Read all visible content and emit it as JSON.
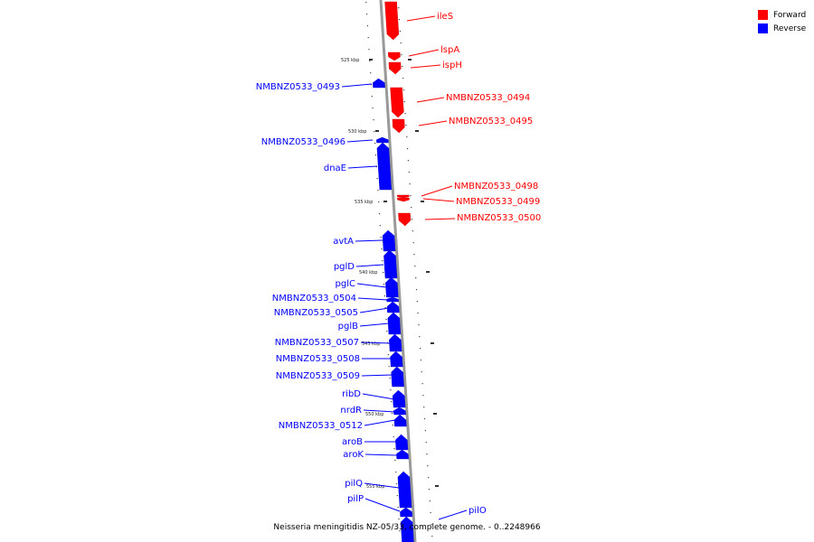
{
  "legend": {
    "forward_label": "Forward",
    "reverse_label": "Reverse",
    "forward_color": "#ff0000",
    "reverse_color": "#0000ff"
  },
  "caption": "Neisseria meningitidis NZ-05/33, complete genome. - 0..2248966",
  "backbone_color": "#999999",
  "ticks": [
    {
      "kbp": 525,
      "label": "525 kbp"
    },
    {
      "kbp": 530,
      "label": "530 kbp"
    },
    {
      "kbp": 535,
      "label": "535 kbp"
    },
    {
      "kbp": 540,
      "label": "540 kbp"
    },
    {
      "kbp": 545,
      "label": "545 kbp"
    },
    {
      "kbp": 550,
      "label": "550 kbp"
    },
    {
      "kbp": 555,
      "label": "555 kbp"
    }
  ],
  "genes": [
    {
      "name": "ileS",
      "strand": "forward"
    },
    {
      "name": "lspA",
      "strand": "forward"
    },
    {
      "name": "ispH",
      "strand": "forward"
    },
    {
      "name": "NMBNZ0533_0493",
      "strand": "reverse"
    },
    {
      "name": "NMBNZ0533_0494",
      "strand": "forward"
    },
    {
      "name": "NMBNZ0533_0495",
      "strand": "forward"
    },
    {
      "name": "NMBNZ0533_0496",
      "strand": "reverse"
    },
    {
      "name": "dnaE",
      "strand": "reverse"
    },
    {
      "name": "NMBNZ0533_0498",
      "strand": "forward"
    },
    {
      "name": "NMBNZ0533_0499",
      "strand": "forward"
    },
    {
      "name": "NMBNZ0533_0500",
      "strand": "forward"
    },
    {
      "name": "avtA",
      "strand": "reverse"
    },
    {
      "name": "pglD",
      "strand": "reverse"
    },
    {
      "name": "pglC",
      "strand": "reverse"
    },
    {
      "name": "NMBNZ0533_0504",
      "strand": "reverse"
    },
    {
      "name": "NMBNZ0533_0505",
      "strand": "reverse"
    },
    {
      "name": "pglB",
      "strand": "reverse"
    },
    {
      "name": "NMBNZ0533_0507",
      "strand": "reverse"
    },
    {
      "name": "NMBNZ0533_0508",
      "strand": "reverse"
    },
    {
      "name": "NMBNZ0533_0509",
      "strand": "reverse"
    },
    {
      "name": "ribD",
      "strand": "reverse"
    },
    {
      "name": "nrdR",
      "strand": "reverse"
    },
    {
      "name": "NMBNZ0533_0512",
      "strand": "reverse"
    },
    {
      "name": "aroB",
      "strand": "reverse"
    },
    {
      "name": "aroK",
      "strand": "reverse"
    },
    {
      "name": "pilQ",
      "strand": "reverse"
    },
    {
      "name": "pilP",
      "strand": "reverse"
    },
    {
      "name": "pilO",
      "strand": "reverse"
    }
  ]
}
